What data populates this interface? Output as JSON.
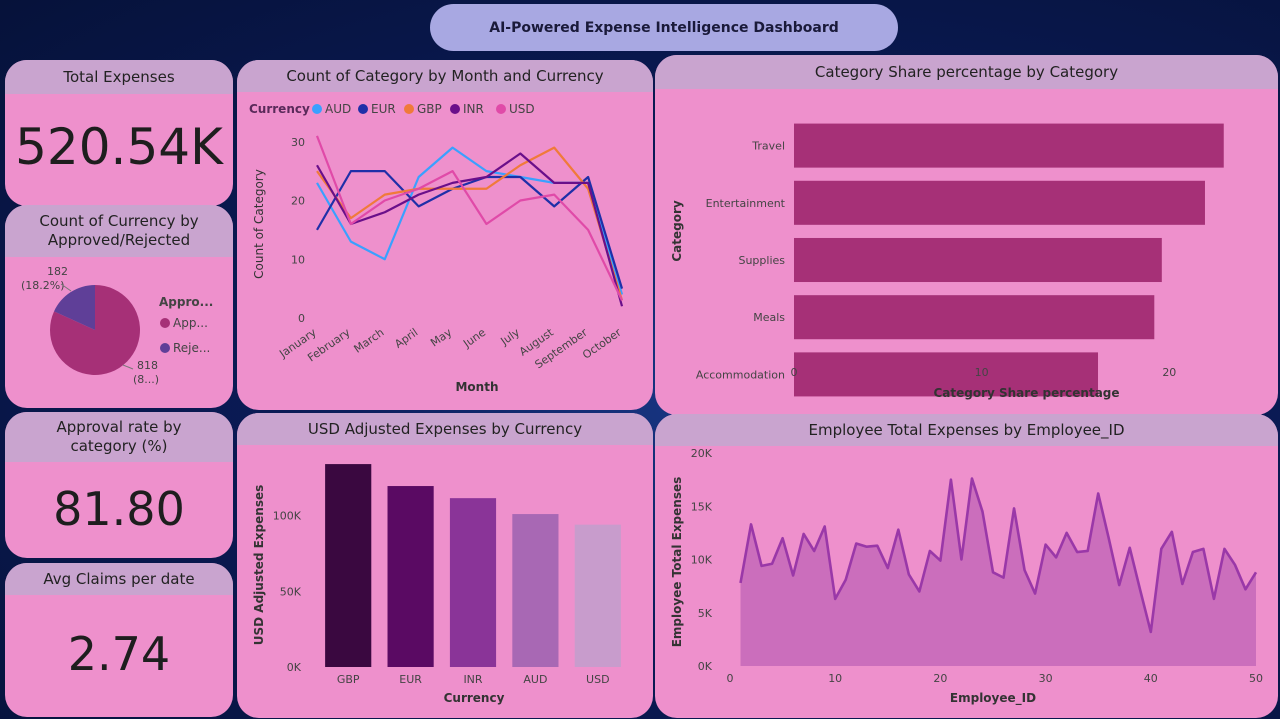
{
  "header": {
    "title": "AI-Powered Expense Intelligence Dashboard"
  },
  "kpis": {
    "total_expenses": {
      "label": "Total Expenses",
      "value": "520.54K"
    },
    "approval_rate": {
      "label": "Approval rate by category (%)",
      "value": "81.80"
    },
    "avg_claims": {
      "label": "Avg Claims per date",
      "value": "2.74"
    }
  },
  "colors": {
    "card": "#ee90cc",
    "header": "#c9a4cf"
  },
  "chart_data": [
    {
      "id": "line",
      "type": "line",
      "title": "Count of Category by Month and Currency",
      "xlabel": "Month",
      "ylabel": "Count of Category",
      "legend_title": "Currency",
      "legend_position": "top-left",
      "categories": [
        "January",
        "February",
        "March",
        "April",
        "May",
        "June",
        "July",
        "August",
        "September",
        "October"
      ],
      "ylim": [
        0,
        32
      ],
      "yticks": [
        0,
        10,
        20,
        30
      ],
      "series": [
        {
          "name": "AUD",
          "color": "#3aa0ff",
          "values": [
            23,
            13,
            10,
            24,
            29,
            25,
            24,
            23,
            23,
            4
          ]
        },
        {
          "name": "EUR",
          "color": "#1f2fa8",
          "values": [
            15,
            25,
            25,
            19,
            22,
            24,
            24,
            19,
            24,
            5
          ]
        },
        {
          "name": "GBP",
          "color": "#f07a3a",
          "values": [
            25,
            17,
            21,
            22,
            22,
            22,
            26,
            29,
            22,
            3
          ]
        },
        {
          "name": "INR",
          "color": "#6a0f8a",
          "values": [
            26,
            16,
            18,
            21,
            23,
            24,
            28,
            23,
            23,
            2
          ]
        },
        {
          "name": "USD",
          "color": "#e04aa8",
          "values": [
            31,
            16,
            20,
            22,
            25,
            16,
            20,
            21,
            15,
            3
          ]
        }
      ]
    },
    {
      "id": "bar-h",
      "type": "bar",
      "orientation": "horizontal",
      "title": "Category Share percentage by Category",
      "xlabel": "Category Share percentage",
      "ylabel": "Category",
      "categories": [
        "Travel",
        "Entertainment",
        "Supplies",
        "Meals",
        "Accommodation"
      ],
      "values": [
        22.9,
        21.9,
        19.6,
        19.2,
        16.2
      ],
      "xlim": [
        0,
        23.5
      ],
      "xticks": [
        0,
        10,
        20
      ],
      "color": "#a63077"
    },
    {
      "id": "pie",
      "type": "pie",
      "title": "Count of Currency by Approved/Rejected",
      "legend_title": "Appro...",
      "legend_position": "right",
      "slices": [
        {
          "label": "App...",
          "value": 818,
          "color": "#a63077",
          "data_label": "818",
          "pct_label": "(8...)"
        },
        {
          "label": "Reje...",
          "value": 182,
          "color": "#5f3f98",
          "data_label": "182",
          "pct_label": "(18.2%)"
        }
      ]
    },
    {
      "id": "bar-v",
      "type": "bar",
      "title": "USD Adjusted Expenses by Currency",
      "xlabel": "Currency",
      "ylabel": "USD Adjusted Expenses",
      "categories": [
        "GBP",
        "EUR",
        "INR",
        "AUD",
        "USD"
      ],
      "values": [
        134000,
        119500,
        111500,
        101000,
        94000
      ],
      "colors": [
        "#3a0840",
        "#5a0a63",
        "#8a3498",
        "#a868b4",
        "#c89ccc"
      ],
      "ylim": [
        0,
        140000
      ],
      "yticks": [
        0,
        50000,
        100000
      ],
      "ytick_labels": [
        "0K",
        "50K",
        "100K"
      ]
    },
    {
      "id": "area",
      "type": "area",
      "title": "Employee Total Expenses by Employee_ID",
      "xlabel": "Employee_ID",
      "ylabel": "Employee Total Expenses",
      "x": [
        1,
        2,
        3,
        4,
        5,
        6,
        7,
        8,
        9,
        10,
        11,
        12,
        13,
        14,
        15,
        16,
        17,
        18,
        19,
        20,
        21,
        22,
        23,
        24,
        25,
        26,
        27,
        28,
        29,
        30,
        31,
        32,
        33,
        34,
        35,
        36,
        37,
        38,
        39,
        40,
        41,
        42,
        43,
        44,
        45,
        46,
        47,
        48,
        49,
        50
      ],
      "values": [
        7800,
        13300,
        9400,
        9600,
        12000,
        8500,
        12400,
        10800,
        13100,
        6300,
        8100,
        11500,
        11200,
        11300,
        9200,
        12800,
        8600,
        7000,
        10800,
        9900,
        17500,
        10000,
        17600,
        14500,
        8800,
        8300,
        14800,
        9000,
        6800,
        11400,
        10200,
        12500,
        10700,
        10800,
        16200,
        12000,
        7600,
        11100,
        7100,
        3200,
        11000,
        12600,
        7700,
        10700,
        11000,
        6300,
        11000,
        9500,
        7200,
        8800
      ],
      "ylim": [
        0,
        20000
      ],
      "yticks": [
        0,
        5000,
        10000,
        15000,
        20000
      ],
      "ytick_labels": [
        "0K",
        "5K",
        "10K",
        "15K",
        "20K"
      ],
      "xlim": [
        0,
        50
      ],
      "xticks": [
        0,
        10,
        20,
        30,
        40,
        50
      ],
      "xtick_labels": [
        "0",
        "10",
        "20",
        "30",
        "40",
        "50"
      ],
      "color": "#a84fb0"
    }
  ]
}
